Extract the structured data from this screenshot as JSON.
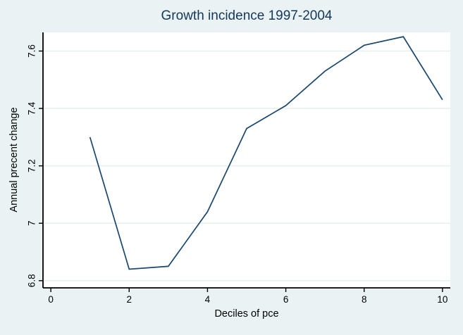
{
  "chart_data": {
    "type": "line",
    "title": "Growth incidence 1997-2004",
    "xlabel": "Deciles of pce",
    "ylabel": "Annual precent change",
    "x": [
      1,
      2,
      3,
      4,
      5,
      6,
      7,
      8,
      9,
      10
    ],
    "y": [
      7.3,
      6.84,
      6.85,
      7.04,
      7.33,
      7.41,
      7.53,
      7.62,
      7.65,
      7.43
    ],
    "xticks": {
      "values": [
        0,
        2,
        4,
        6,
        8,
        10
      ],
      "labels": [
        "0",
        "2",
        "4",
        "6",
        "8",
        "10"
      ]
    },
    "yticks": {
      "values": [
        6.8,
        7.0,
        7.2,
        7.4,
        7.6
      ],
      "labels": [
        "6.8",
        "7",
        "7.2",
        "7.4",
        "7.6"
      ]
    },
    "xlim": [
      -0.2,
      10.2
    ],
    "ylim": [
      6.775,
      7.665
    ],
    "grid": true,
    "legend": "none",
    "y_tick_labels_rotated": true
  },
  "colors": {
    "background": "#eaf2f3",
    "plot_background": "#ffffff",
    "line": "#1a476f",
    "title_text": "#13385a",
    "axis_text": "#000000",
    "axis_line": "#000000",
    "gridline": "#e9f0f2"
  }
}
